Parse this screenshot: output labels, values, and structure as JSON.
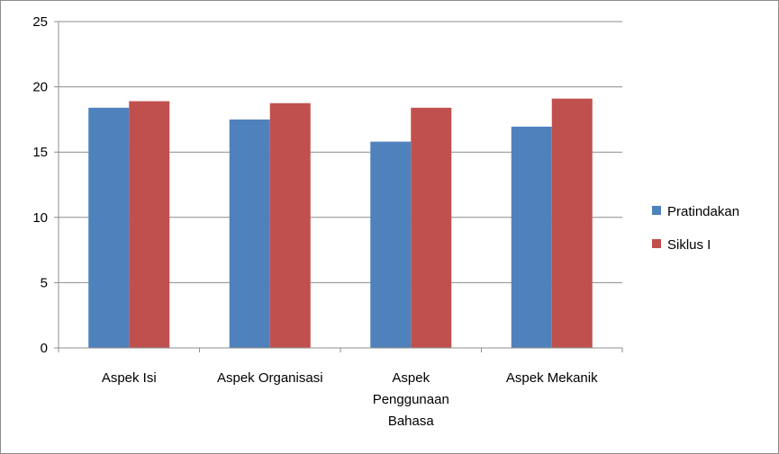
{
  "chart_data": {
    "type": "bar",
    "categories": [
      [
        "Aspek Isi"
      ],
      [
        "Aspek Organisasi"
      ],
      [
        "Aspek",
        "Penggunaan",
        "Bahasa"
      ],
      [
        "Aspek Mekanik"
      ]
    ],
    "series": [
      {
        "name": "Pratindakan",
        "color": "#4F81BD",
        "values": [
          18.4,
          17.5,
          15.8,
          16.95
        ]
      },
      {
        "name": "Siklus I",
        "color": "#C0504D",
        "values": [
          18.9,
          18.75,
          18.4,
          19.1
        ]
      }
    ],
    "ylim": [
      0,
      25
    ],
    "yticks": [
      0,
      5,
      10,
      15,
      20,
      25
    ],
    "grid": true,
    "legend_position": "right"
  }
}
